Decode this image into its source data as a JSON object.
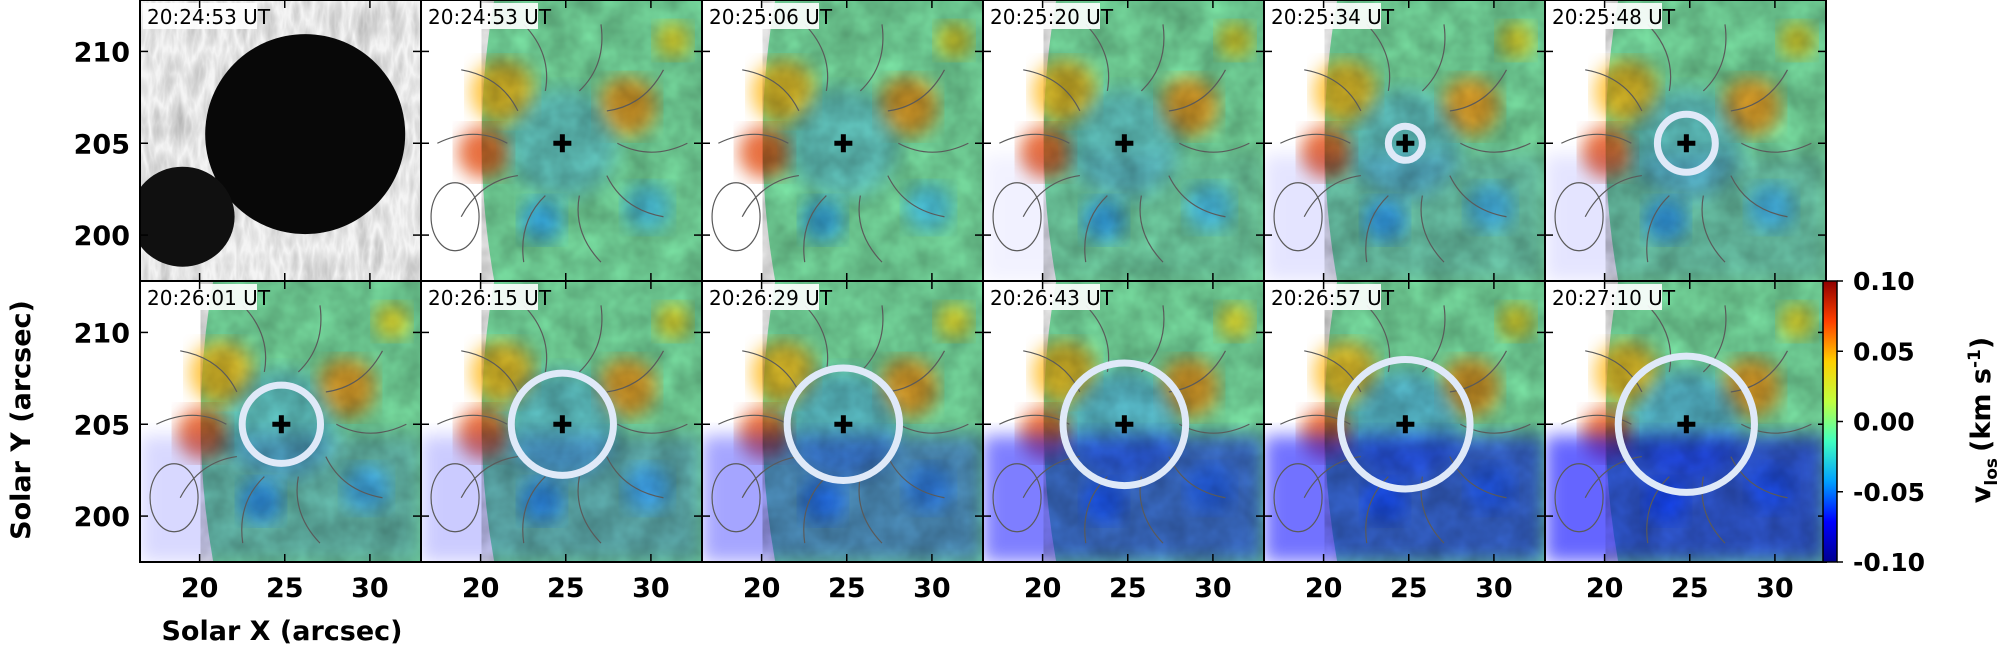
{
  "figure": {
    "xlabel": "Solar X (arcsec)",
    "ylabel": "Solar Y (arcsec)"
  },
  "colorbar": {
    "label_main": "v",
    "label_sub": "los",
    "label_units": "(km s",
    "label_exp": "-1",
    "label_close": ")",
    "ticks": [
      "0.10",
      "0.05",
      "0.00",
      "-0.05",
      "-0.10"
    ],
    "tick_values": [
      0.1,
      0.05,
      0.0,
      -0.05,
      -0.1
    ],
    "range": [
      -0.1,
      0.1
    ],
    "colormap": [
      "#00008f",
      "#0000ff",
      "#00a0ff",
      "#40ffc0",
      "#c0ff40",
      "#ffd000",
      "#ff4000",
      "#8f0000"
    ]
  },
  "colors": {
    "ring": "#dfe9f8",
    "marker": "#000000",
    "contour": "#5a5a5a",
    "frame": "#000000"
  },
  "chart_data": {
    "type": "heatmap",
    "x_ticks": [
      20,
      25,
      30
    ],
    "y_ticks": [
      210,
      205,
      200
    ],
    "xlim": [
      16.5,
      33
    ],
    "ylim": [
      197.5,
      212.8
    ],
    "marker": {
      "x": 24.8,
      "y": 205.0
    },
    "panels": [
      {
        "time": "20:24:53 UT",
        "kind": "intensity",
        "ring_radius": 0
      },
      {
        "time": "20:24:53 UT",
        "kind": "velocity",
        "ring_radius": 0,
        "blue": 0.0
      },
      {
        "time": "20:25:06 UT",
        "kind": "velocity",
        "ring_radius": 0,
        "blue": 0.0
      },
      {
        "time": "20:25:20 UT",
        "kind": "velocity",
        "ring_radius": 0,
        "blue": 0.05
      },
      {
        "time": "20:25:34 UT",
        "kind": "velocity",
        "ring_radius": 1.0,
        "blue": 0.1
      },
      {
        "time": "20:25:48 UT",
        "kind": "velocity",
        "ring_radius": 1.7,
        "blue": 0.1
      },
      {
        "time": "20:26:01 UT",
        "kind": "velocity",
        "ring_radius": 2.3,
        "blue": 0.15
      },
      {
        "time": "20:26:15 UT",
        "kind": "velocity",
        "ring_radius": 3.0,
        "blue": 0.2
      },
      {
        "time": "20:26:29 UT",
        "kind": "velocity",
        "ring_radius": 3.3,
        "blue": 0.35
      },
      {
        "time": "20:26:43 UT",
        "kind": "velocity",
        "ring_radius": 3.6,
        "blue": 0.5
      },
      {
        "time": "20:26:57 UT",
        "kind": "velocity",
        "ring_radius": 3.8,
        "blue": 0.55
      },
      {
        "time": "20:27:10 UT",
        "kind": "velocity",
        "ring_radius": 4.0,
        "blue": 0.6
      }
    ]
  }
}
